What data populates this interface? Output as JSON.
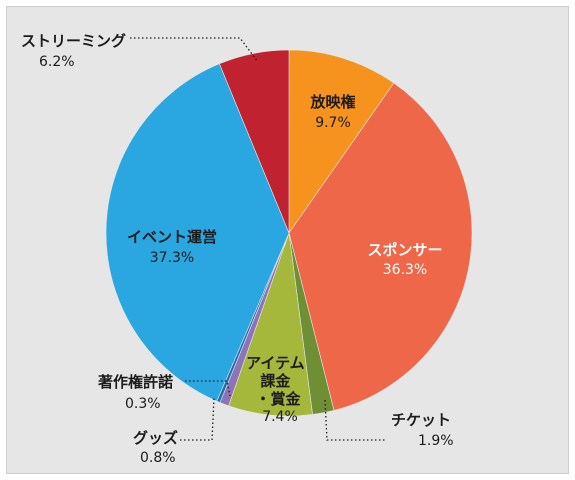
{
  "chart_data": {
    "type": "pie",
    "start_angle_deg": 0,
    "direction": "clockwise",
    "slices": [
      {
        "name": "放映権",
        "value": 9.7,
        "label": "9.7%",
        "color": "#f5931e"
      },
      {
        "name": "スポンサー",
        "value": 36.3,
        "label": "36.3%",
        "color": "#ee6748"
      },
      {
        "name": "チケット",
        "value": 1.9,
        "label": "1.9%",
        "color": "#6f8f35"
      },
      {
        "name": "アイテム\n課金\n・賞金",
        "value": 7.4,
        "label": "7.4%",
        "color": "#a6b83c"
      },
      {
        "name": "グッズ",
        "value": 0.8,
        "label": "0.8%",
        "color": "#8e73b6"
      },
      {
        "name": "著作権許諾",
        "value": 0.3,
        "label": "0.3%",
        "color": "#1f6fb4"
      },
      {
        "name": "イベント運営",
        "value": 37.3,
        "label": "37.3%",
        "color": "#2aa7e1"
      },
      {
        "name": "ストリーミング",
        "value": 6.2,
        "label": "6.2%",
        "color": "#c1222f"
      }
    ]
  }
}
